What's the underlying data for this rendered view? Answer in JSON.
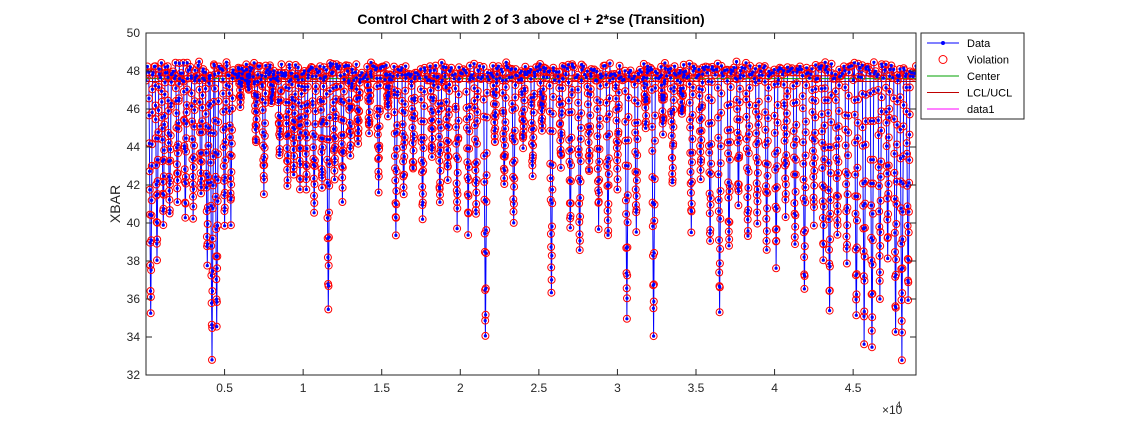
{
  "chart_data": {
    "type": "line",
    "title": "Control Chart with 2 of 3 above cl + 2*se (Transition)",
    "xlabel": "",
    "ylabel": "XBAR",
    "xlim": [
      0,
      49000
    ],
    "ylim": [
      32,
      50
    ],
    "x_ticks": [
      5000,
      10000,
      15000,
      20000,
      25000,
      30000,
      35000,
      40000,
      45000
    ],
    "x_tick_labels": [
      "0.5",
      "1",
      "1.5",
      "2",
      "2.5",
      "3",
      "3.5",
      "4",
      "4.5"
    ],
    "x_exponent_label": "×10",
    "x_exponent_power": "4",
    "y_ticks": [
      32,
      34,
      36,
      38,
      40,
      42,
      44,
      46,
      48,
      50
    ],
    "y_tick_labels": [
      "32",
      "34",
      "36",
      "38",
      "40",
      "42",
      "44",
      "46",
      "48",
      "50"
    ],
    "center_line": 47.6,
    "lcl": 47.45,
    "ucl": 47.75,
    "legend_position": "top-right",
    "legend": [
      {
        "name": "Data",
        "style": "line-marker",
        "color": "#0000ff"
      },
      {
        "name": "Violation",
        "style": "circle",
        "color": "#ff0000"
      },
      {
        "name": "Center",
        "style": "line",
        "color": "#00a000"
      },
      {
        "name": "LCL/UCL",
        "style": "line",
        "color": "#c00000"
      },
      {
        "name": "data1",
        "style": "line",
        "color": "#ff00ff"
      }
    ],
    "drops": [
      {
        "x": 300,
        "y": 35.0
      },
      {
        "x": 700,
        "y": 38.2
      },
      {
        "x": 1100,
        "y": 40.0
      },
      {
        "x": 1500,
        "y": 40.2
      },
      {
        "x": 2000,
        "y": 41.5
      },
      {
        "x": 2500,
        "y": 40.5
      },
      {
        "x": 3000,
        "y": 40.3
      },
      {
        "x": 3500,
        "y": 41.2
      },
      {
        "x": 3900,
        "y": 37.5
      },
      {
        "x": 4200,
        "y": 33.0
      },
      {
        "x": 4500,
        "y": 34.5
      },
      {
        "x": 5000,
        "y": 39.8
      },
      {
        "x": 5400,
        "y": 40.2
      },
      {
        "x": 6000,
        "y": 46.5
      },
      {
        "x": 6500,
        "y": 47.0
      },
      {
        "x": 7000,
        "y": 44.0
      },
      {
        "x": 7500,
        "y": 41.8
      },
      {
        "x": 8000,
        "y": 46.3
      },
      {
        "x": 8500,
        "y": 43.5
      },
      {
        "x": 9000,
        "y": 41.8
      },
      {
        "x": 9400,
        "y": 42.5
      },
      {
        "x": 9800,
        "y": 42.0
      },
      {
        "x": 10200,
        "y": 42.0
      },
      {
        "x": 10700,
        "y": 40.5
      },
      {
        "x": 11200,
        "y": 41.8
      },
      {
        "x": 11600,
        "y": 35.6
      },
      {
        "x": 12000,
        "y": 42.5
      },
      {
        "x": 12500,
        "y": 41.5
      },
      {
        "x": 13000,
        "y": 43.5
      },
      {
        "x": 13500,
        "y": 44.0
      },
      {
        "x": 14200,
        "y": 44.8
      },
      {
        "x": 14800,
        "y": 42.0
      },
      {
        "x": 15400,
        "y": 46.0
      },
      {
        "x": 15900,
        "y": 39.5
      },
      {
        "x": 16400,
        "y": 41.5
      },
      {
        "x": 17000,
        "y": 42.5
      },
      {
        "x": 17600,
        "y": 40.0
      },
      {
        "x": 18200,
        "y": 43.5
      },
      {
        "x": 18700,
        "y": 40.8
      },
      {
        "x": 19200,
        "y": 42.0
      },
      {
        "x": 19800,
        "y": 40.0
      },
      {
        "x": 20500,
        "y": 39.5
      },
      {
        "x": 21000,
        "y": 40.3
      },
      {
        "x": 21600,
        "y": 33.8
      },
      {
        "x": 22200,
        "y": 44.0
      },
      {
        "x": 22800,
        "y": 42.0
      },
      {
        "x": 23400,
        "y": 40.0
      },
      {
        "x": 24000,
        "y": 44.0
      },
      {
        "x": 24600,
        "y": 42.5
      },
      {
        "x": 25200,
        "y": 44.8
      },
      {
        "x": 25800,
        "y": 36.2
      },
      {
        "x": 26400,
        "y": 42.8
      },
      {
        "x": 27000,
        "y": 39.5
      },
      {
        "x": 27600,
        "y": 38.5
      },
      {
        "x": 28200,
        "y": 42.5
      },
      {
        "x": 28800,
        "y": 40.0
      },
      {
        "x": 29400,
        "y": 39.0
      },
      {
        "x": 30000,
        "y": 42.0
      },
      {
        "x": 30600,
        "y": 35.0
      },
      {
        "x": 31200,
        "y": 39.5
      },
      {
        "x": 31800,
        "y": 45.3
      },
      {
        "x": 32300,
        "y": 34.3
      },
      {
        "x": 32900,
        "y": 45.0
      },
      {
        "x": 33500,
        "y": 41.8
      },
      {
        "x": 34100,
        "y": 45.5
      },
      {
        "x": 34700,
        "y": 39.5
      },
      {
        "x": 35300,
        "y": 42.5
      },
      {
        "x": 35900,
        "y": 38.8
      },
      {
        "x": 36500,
        "y": 35.0
      },
      {
        "x": 37100,
        "y": 38.5
      },
      {
        "x": 37700,
        "y": 41.0
      },
      {
        "x": 38300,
        "y": 39.0
      },
      {
        "x": 38900,
        "y": 40.0
      },
      {
        "x": 39500,
        "y": 38.5
      },
      {
        "x": 40100,
        "y": 37.8
      },
      {
        "x": 40700,
        "y": 40.5
      },
      {
        "x": 41300,
        "y": 38.5
      },
      {
        "x": 41900,
        "y": 36.2
      },
      {
        "x": 42500,
        "y": 40.0
      },
      {
        "x": 43100,
        "y": 38.0
      },
      {
        "x": 43500,
        "y": 35.0
      },
      {
        "x": 44000,
        "y": 39.0
      },
      {
        "x": 44600,
        "y": 37.5
      },
      {
        "x": 45200,
        "y": 35.0
      },
      {
        "x": 45700,
        "y": 34.0
      },
      {
        "x": 46200,
        "y": 33.2
      },
      {
        "x": 46700,
        "y": 36.0
      },
      {
        "x": 47200,
        "y": 38.5
      },
      {
        "x": 47700,
        "y": 34.2
      },
      {
        "x": 48100,
        "y": 33.0
      },
      {
        "x": 48500,
        "y": 36.0
      }
    ]
  }
}
